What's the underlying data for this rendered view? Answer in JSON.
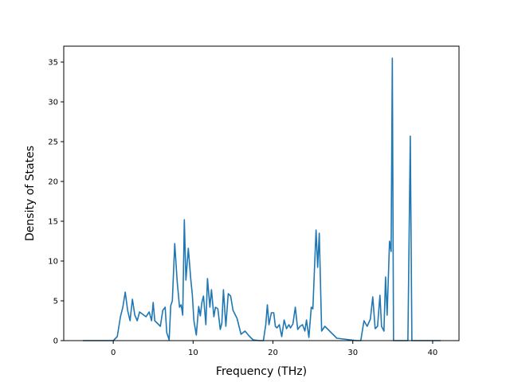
{
  "chart_data": {
    "type": "line",
    "title": "",
    "xlabel": "Frequency (THz)",
    "ylabel": "Density of States",
    "xlim": [
      -6.2,
      43.3
    ],
    "ylim": [
      0,
      37
    ],
    "xticks": [
      0,
      10,
      20,
      30,
      40
    ],
    "yticks": [
      0,
      5,
      10,
      15,
      20,
      25,
      30,
      35
    ],
    "grid": false,
    "legend": "none",
    "series": [
      {
        "color": "#1f77b4",
        "x": [
          -3.8,
          -1.0,
          0.0,
          0.5,
          0.9,
          1.2,
          1.5,
          1.8,
          2.1,
          2.4,
          2.7,
          3.0,
          3.3,
          3.7,
          4.1,
          4.5,
          4.8,
          5.0,
          5.2,
          5.5,
          5.9,
          6.2,
          6.5,
          6.7,
          7.0,
          7.2,
          7.4,
          7.7,
          8.0,
          8.3,
          8.5,
          8.7,
          8.9,
          9.1,
          9.4,
          9.7,
          9.9,
          10.1,
          10.4,
          10.7,
          10.9,
          11.1,
          11.3,
          11.6,
          11.8,
          12.1,
          12.3,
          12.6,
          12.8,
          13.1,
          13.4,
          13.6,
          13.8,
          14.1,
          14.4,
          14.7,
          15.0,
          15.5,
          16.0,
          16.5,
          17.0,
          17.5,
          18.3,
          18.8,
          19.1,
          19.3,
          19.5,
          19.8,
          20.1,
          20.3,
          20.5,
          20.8,
          21.1,
          21.4,
          21.7,
          22.0,
          22.2,
          22.5,
          22.8,
          23.1,
          23.4,
          23.7,
          24.0,
          24.2,
          24.5,
          24.8,
          25.0,
          25.2,
          25.4,
          25.6,
          25.8,
          26.1,
          26.5,
          28.0,
          30.5,
          31.0,
          31.4,
          31.8,
          32.2,
          32.5,
          32.8,
          33.1,
          33.4,
          33.6,
          33.9,
          34.1,
          34.3,
          34.6,
          34.8,
          34.95,
          35.1,
          35.25,
          35.5,
          35.9,
          36.5,
          36.9,
          37.2,
          37.4,
          37.7,
          41.0
        ],
        "y": [
          0,
          0,
          0,
          0.5,
          3.0,
          4.2,
          6.1,
          3.8,
          2.5,
          5.2,
          3.2,
          2.5,
          3.6,
          3.3,
          3.0,
          3.6,
          2.5,
          4.8,
          2.5,
          2.2,
          1.8,
          3.8,
          4.2,
          1.0,
          0.1,
          4.4,
          5.0,
          12.2,
          7.5,
          4.2,
          4.5,
          3.2,
          15.2,
          7.6,
          11.6,
          7.8,
          5.8,
          2.5,
          0.7,
          4.3,
          3.1,
          4.8,
          5.6,
          2.0,
          7.8,
          4.2,
          6.4,
          3.0,
          4.2,
          4.0,
          1.4,
          2.2,
          6.4,
          1.8,
          5.9,
          5.6,
          3.8,
          2.8,
          0.8,
          1.2,
          0.6,
          0.1,
          0,
          0,
          2.0,
          4.5,
          2.0,
          3.5,
          3.5,
          1.8,
          1.6,
          2.0,
          0.5,
          2.6,
          1.5,
          2.0,
          1.6,
          2.1,
          4.2,
          1.4,
          1.8,
          2.0,
          1.2,
          2.6,
          0.4,
          4.2,
          4.0,
          9.0,
          13.9,
          9.2,
          13.5,
          1.2,
          1.8,
          0.3,
          0,
          0,
          2.5,
          1.8,
          2.7,
          5.5,
          1.5,
          1.8,
          5.7,
          1.8,
          1.2,
          8.0,
          3.2,
          12.5,
          11.2,
          35.5,
          0,
          0,
          0,
          0,
          0,
          0,
          25.7,
          0,
          0,
          0
        ]
      }
    ]
  }
}
